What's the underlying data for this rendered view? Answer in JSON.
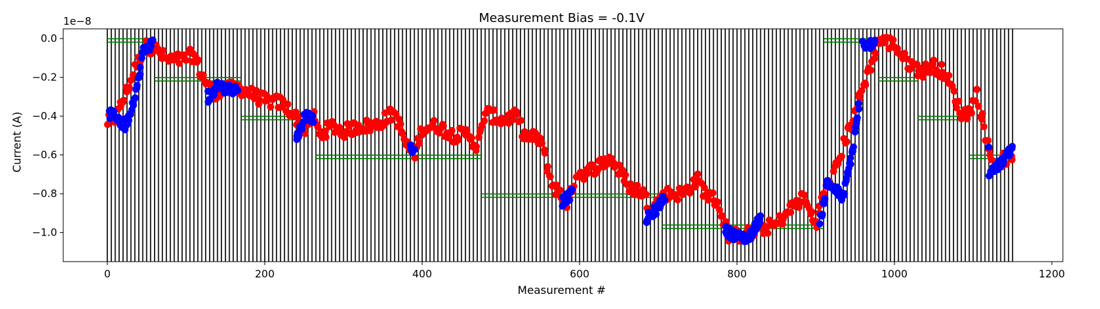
{
  "chart_data": {
    "type": "scatter",
    "title": "Measurement Bias = -0.1V",
    "xlabel": "Measurement #",
    "ylabel": "Current (A)",
    "offset_text": "1e−8",
    "xlim": [
      -56,
      1214
    ],
    "ylim": [
      -1.15,
      0.05
    ],
    "xticks": [
      0,
      200,
      400,
      600,
      800,
      1000,
      1200
    ],
    "xtick_labels": [
      "0",
      "200",
      "400",
      "600",
      "800",
      "1000",
      "1200"
    ],
    "yticks": [
      0.0,
      -0.2,
      -0.4,
      -0.6,
      -0.8,
      -1.0
    ],
    "ytick_labels": [
      "0.0",
      "−0.2",
      "−0.4",
      "−0.6",
      "−0.8",
      "−1.0"
    ],
    "grid": false,
    "colors": {
      "red_points": "#ff0000",
      "blue_points": "#0000ff",
      "vertical_lines": "#000000",
      "step_lines": "#008000"
    },
    "vertical_lines": {
      "start": 0,
      "end": 1150,
      "spacing": 5
    },
    "step_levels": [
      {
        "x_start": 0,
        "x_end": 60,
        "y": -0.01
      },
      {
        "x_start": 60,
        "x_end": 170,
        "y": -0.21
      },
      {
        "x_start": 170,
        "x_end": 265,
        "y": -0.41
      },
      {
        "x_start": 265,
        "x_end": 475,
        "y": -0.61
      },
      {
        "x_start": 475,
        "x_end": 705,
        "y": -0.81
      },
      {
        "x_start": 705,
        "x_end": 910,
        "y": -0.97
      },
      {
        "x_start": 910,
        "x_end": 980,
        "y": -0.01
      },
      {
        "x_start": 980,
        "x_end": 1030,
        "y": -0.21
      },
      {
        "x_start": 1030,
        "x_end": 1095,
        "y": -0.41
      },
      {
        "x_start": 1095,
        "x_end": 1150,
        "y": -0.61
      }
    ],
    "series": [
      {
        "color": "red",
        "anchors": [
          [
            0,
            -0.43
          ],
          [
            10,
            -0.42
          ],
          [
            45,
            -0.06
          ],
          [
            50,
            -0.04
          ],
          [
            60,
            -0.05
          ],
          [
            75,
            -0.11
          ],
          [
            95,
            -0.11
          ],
          [
            110,
            -0.08
          ],
          [
            120,
            -0.19
          ],
          [
            135,
            -0.28
          ],
          [
            165,
            -0.25
          ],
          [
            200,
            -0.32
          ],
          [
            220,
            -0.33
          ],
          [
            235,
            -0.38
          ],
          [
            250,
            -0.47
          ],
          [
            262,
            -0.4
          ],
          [
            270,
            -0.5
          ],
          [
            285,
            -0.45
          ],
          [
            300,
            -0.48
          ],
          [
            320,
            -0.45
          ],
          [
            340,
            -0.45
          ],
          [
            365,
            -0.38
          ],
          [
            380,
            -0.55
          ],
          [
            390,
            -0.6
          ],
          [
            400,
            -0.46
          ],
          [
            420,
            -0.45
          ],
          [
            440,
            -0.5
          ],
          [
            460,
            -0.49
          ],
          [
            470,
            -0.57
          ],
          [
            480,
            -0.38
          ],
          [
            500,
            -0.42
          ],
          [
            520,
            -0.4
          ],
          [
            530,
            -0.5
          ],
          [
            550,
            -0.52
          ],
          [
            565,
            -0.75
          ],
          [
            575,
            -0.8
          ],
          [
            585,
            -0.86
          ],
          [
            595,
            -0.7
          ],
          [
            610,
            -0.69
          ],
          [
            625,
            -0.65
          ],
          [
            640,
            -0.62
          ],
          [
            650,
            -0.68
          ],
          [
            665,
            -0.77
          ],
          [
            680,
            -0.79
          ],
          [
            690,
            -0.88
          ],
          [
            710,
            -0.8
          ],
          [
            730,
            -0.8
          ],
          [
            750,
            -0.73
          ],
          [
            760,
            -0.8
          ],
          [
            775,
            -0.84
          ],
          [
            790,
            -1.02
          ],
          [
            810,
            -1.01
          ],
          [
            830,
            -0.98
          ],
          [
            850,
            -0.96
          ],
          [
            870,
            -0.87
          ],
          [
            885,
            -0.82
          ],
          [
            900,
            -0.96
          ],
          [
            912,
            -0.77
          ],
          [
            920,
            -0.74
          ],
          [
            980,
            -0.01
          ],
          [
            1000,
            -0.03
          ],
          [
            1015,
            -0.12
          ],
          [
            1035,
            -0.17
          ],
          [
            1050,
            -0.14
          ],
          [
            1065,
            -0.18
          ],
          [
            1075,
            -0.28
          ],
          [
            1085,
            -0.39
          ],
          [
            1095,
            -0.38
          ],
          [
            1105,
            -0.28
          ],
          [
            1115,
            -0.48
          ],
          [
            1125,
            -0.66
          ],
          [
            1140,
            -0.62
          ],
          [
            1150,
            -0.6
          ]
        ],
        "note_count": 650
      },
      {
        "color": "blue",
        "segments": [
          [
            [
              2,
              -0.39
            ],
            [
              12,
              -0.4
            ],
            [
              22,
              -0.46
            ],
            [
              30,
              -0.37
            ],
            [
              40,
              -0.21
            ],
            [
              45,
              -0.07
            ],
            [
              58,
              -0.02
            ]
          ],
          [
            [
              128,
              -0.32
            ],
            [
              140,
              -0.24
            ],
            [
              150,
              -0.26
            ],
            [
              165,
              -0.26
            ]
          ],
          [
            [
              240,
              -0.52
            ],
            [
              252,
              -0.39
            ],
            [
              262,
              -0.42
            ]
          ],
          [
            [
              385,
              -0.56
            ],
            [
              390,
              -0.57
            ]
          ],
          [
            [
              578,
              -0.84
            ],
            [
              590,
              -0.8
            ]
          ],
          [
            [
              685,
              -0.93
            ],
            [
              700,
              -0.87
            ],
            [
              708,
              -0.81
            ]
          ],
          [
            [
              785,
              -0.99
            ],
            [
              800,
              -1.02
            ],
            [
              815,
              -1.03
            ],
            [
              830,
              -0.92
            ]
          ],
          [
            [
              905,
              -0.96
            ],
            [
              915,
              -0.74
            ],
            [
              935,
              -0.82
            ],
            [
              948,
              -0.55
            ],
            [
              955,
              -0.34
            ]
          ],
          [
            [
              960,
              -0.06
            ],
            [
              975,
              -0.01
            ]
          ],
          [
            [
              1120,
              -0.69
            ],
            [
              1135,
              -0.65
            ],
            [
              1150,
              -0.56
            ]
          ]
        ]
      }
    ]
  }
}
